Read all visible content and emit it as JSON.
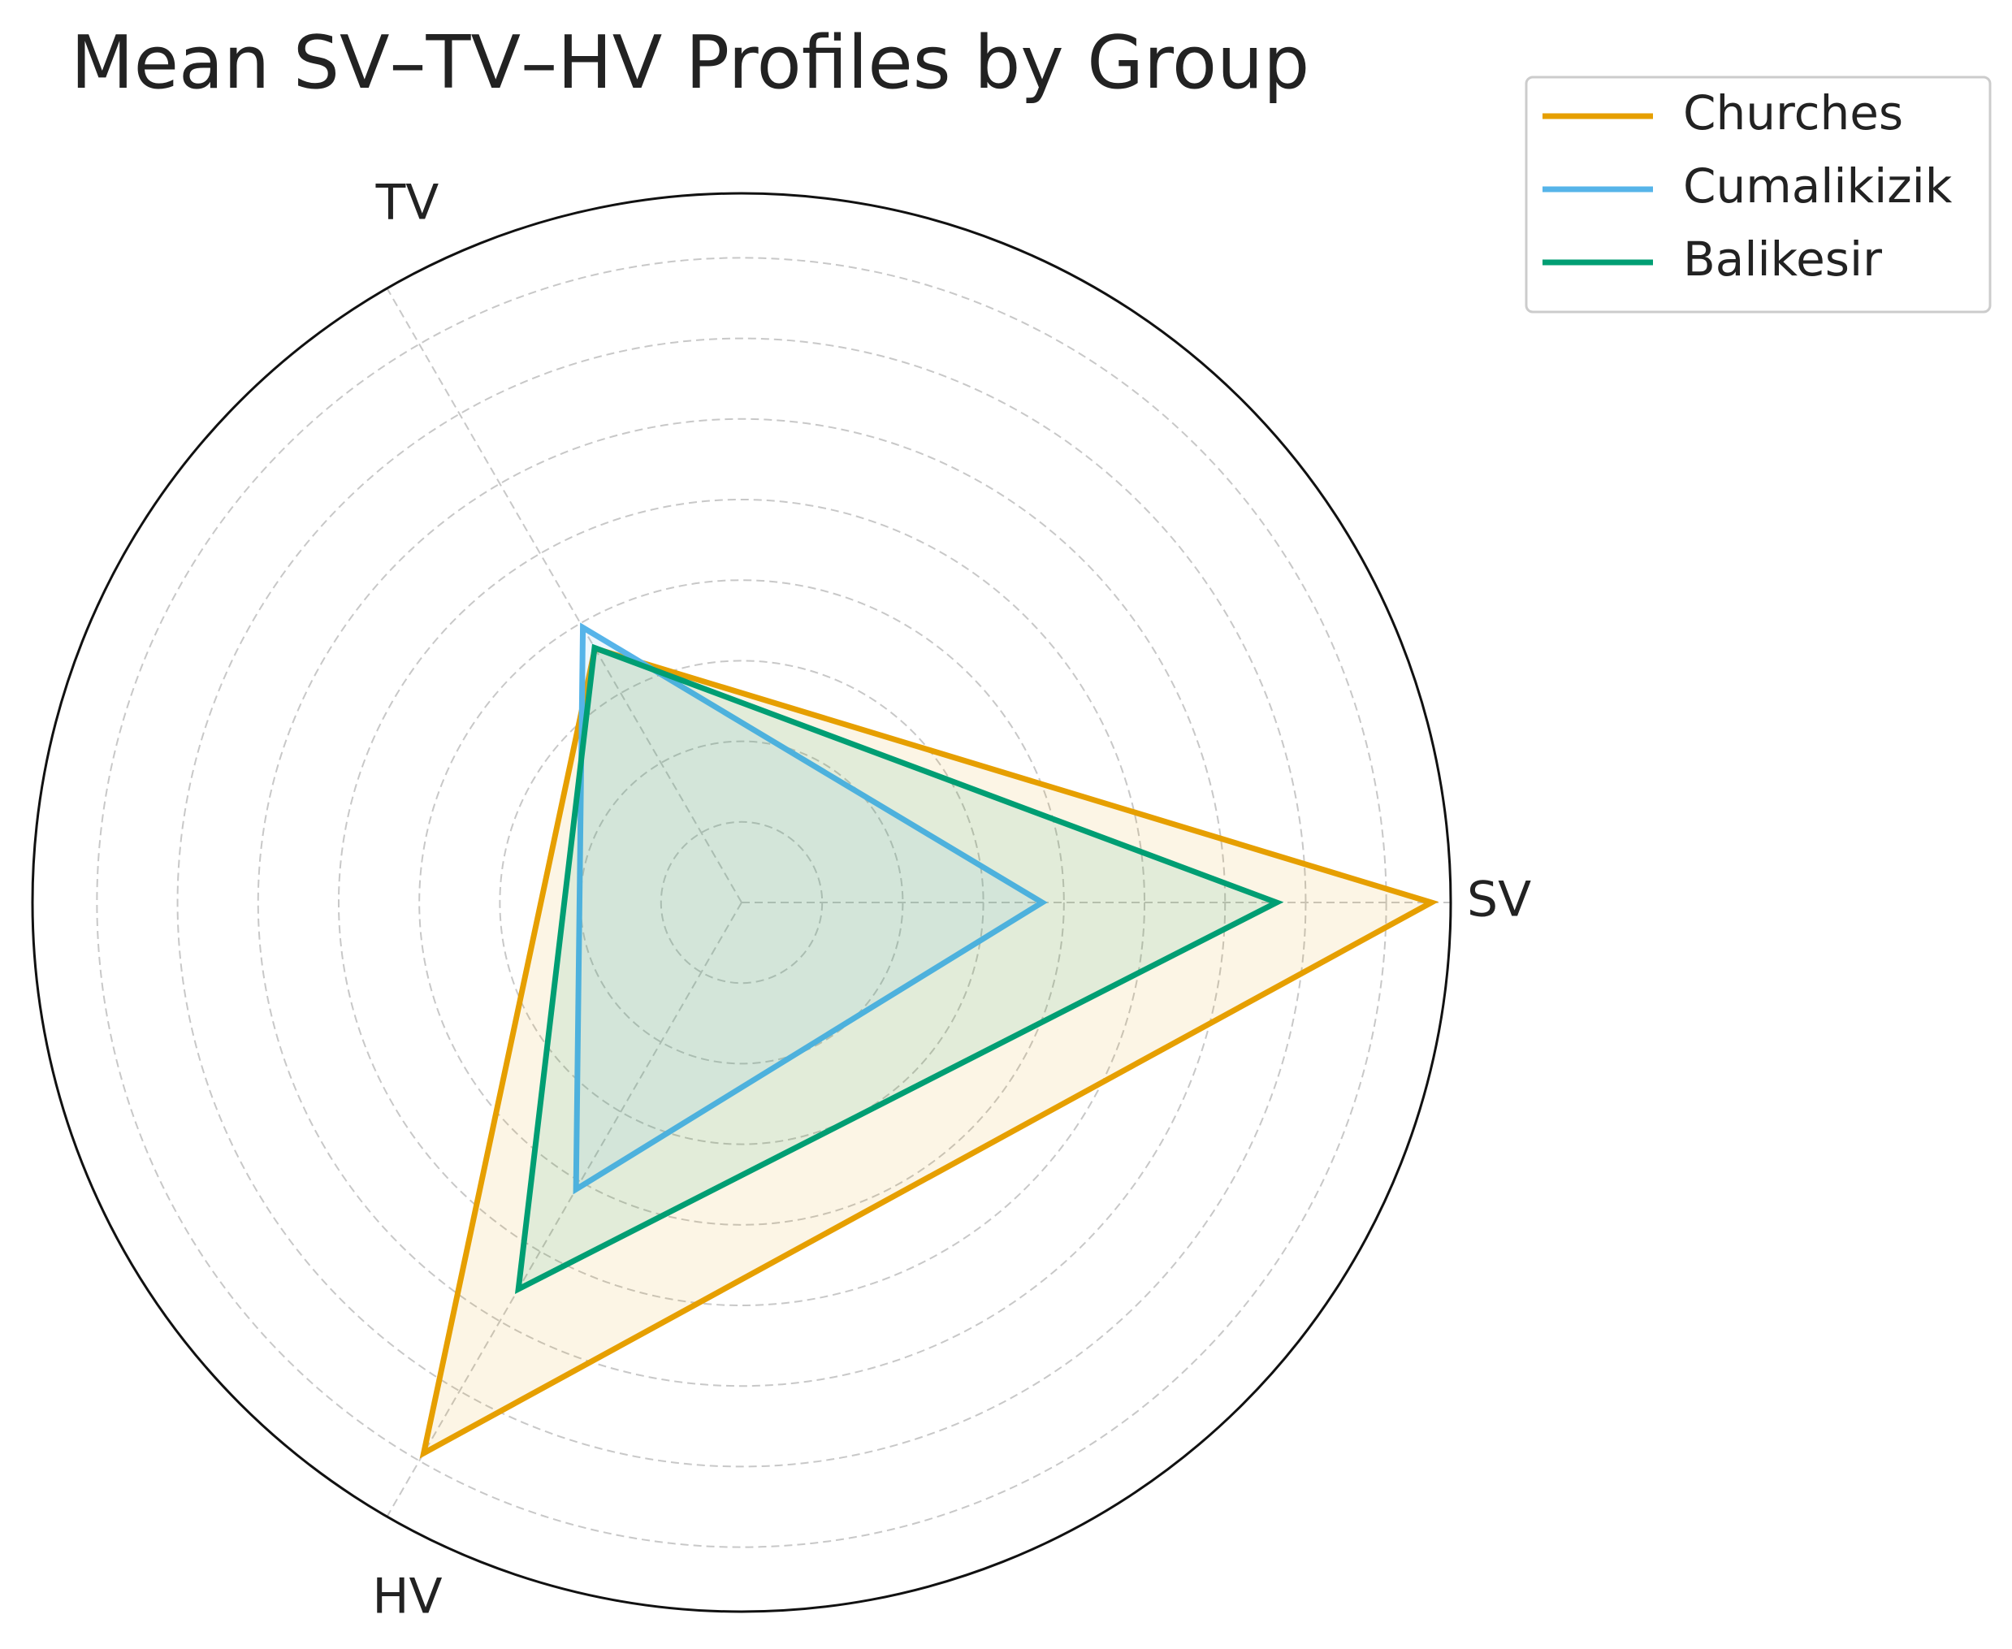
{
  "chart_data": {
    "type": "radar",
    "title": "Mean SV–TV–HV Profiles by Group",
    "categories": [
      "SV",
      "TV",
      "HV"
    ],
    "series": [
      {
        "name": "Churches",
        "color": "#E69F00",
        "values": [
          8.56,
          3.64,
          7.89
        ]
      },
      {
        "name": "Cumalikizik",
        "color": "#56B4E9",
        "values": [
          3.73,
          3.94,
          4.11
        ]
      },
      {
        "name": "Balikesir",
        "color": "#009E73",
        "values": [
          6.64,
          3.65,
          5.54
        ]
      }
    ],
    "rlim": [
      0,
      8.8
    ],
    "rticks": [
      1,
      2,
      3,
      4,
      5,
      6,
      7,
      8
    ],
    "grid": true,
    "legend": "upper right"
  }
}
